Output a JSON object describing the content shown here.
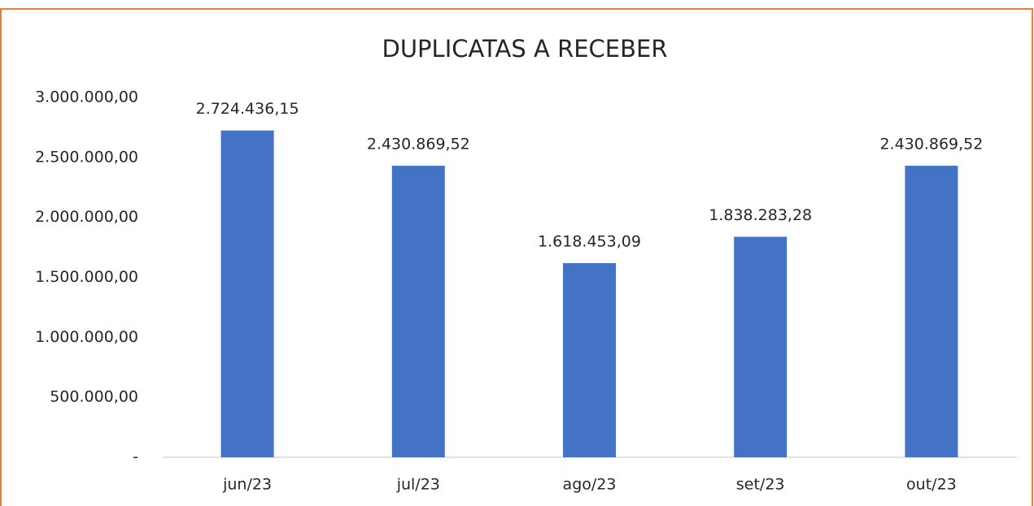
{
  "chart_data": {
    "type": "bar",
    "title": "DUPLICATAS A RECEBER",
    "categories": [
      "jun/23",
      "jul/23",
      "ago/23",
      "set/23",
      "out/23"
    ],
    "values": [
      2724436.15,
      2430869.52,
      1618453.09,
      1838283.28,
      2430869.52
    ],
    "value_labels": [
      "2.724.436,15",
      "2.430.869,52",
      "1.618.453,09",
      "1.838.283,28",
      "2.430.869,52"
    ],
    "color": "#4472c4",
    "ylim": [
      0,
      3000000
    ],
    "yticks": [
      {
        "value": 0,
        "label": "-"
      },
      {
        "value": 500000,
        "label": "500.000,00"
      },
      {
        "value": 1000000,
        "label": "1.000.000,00"
      },
      {
        "value": 1500000,
        "label": "1.500.000,00"
      },
      {
        "value": 2000000,
        "label": "2.000.000,00"
      },
      {
        "value": 2500000,
        "label": "2.500.000,00"
      },
      {
        "value": 3000000,
        "label": "3.000.000,00"
      }
    ],
    "grid": false
  }
}
